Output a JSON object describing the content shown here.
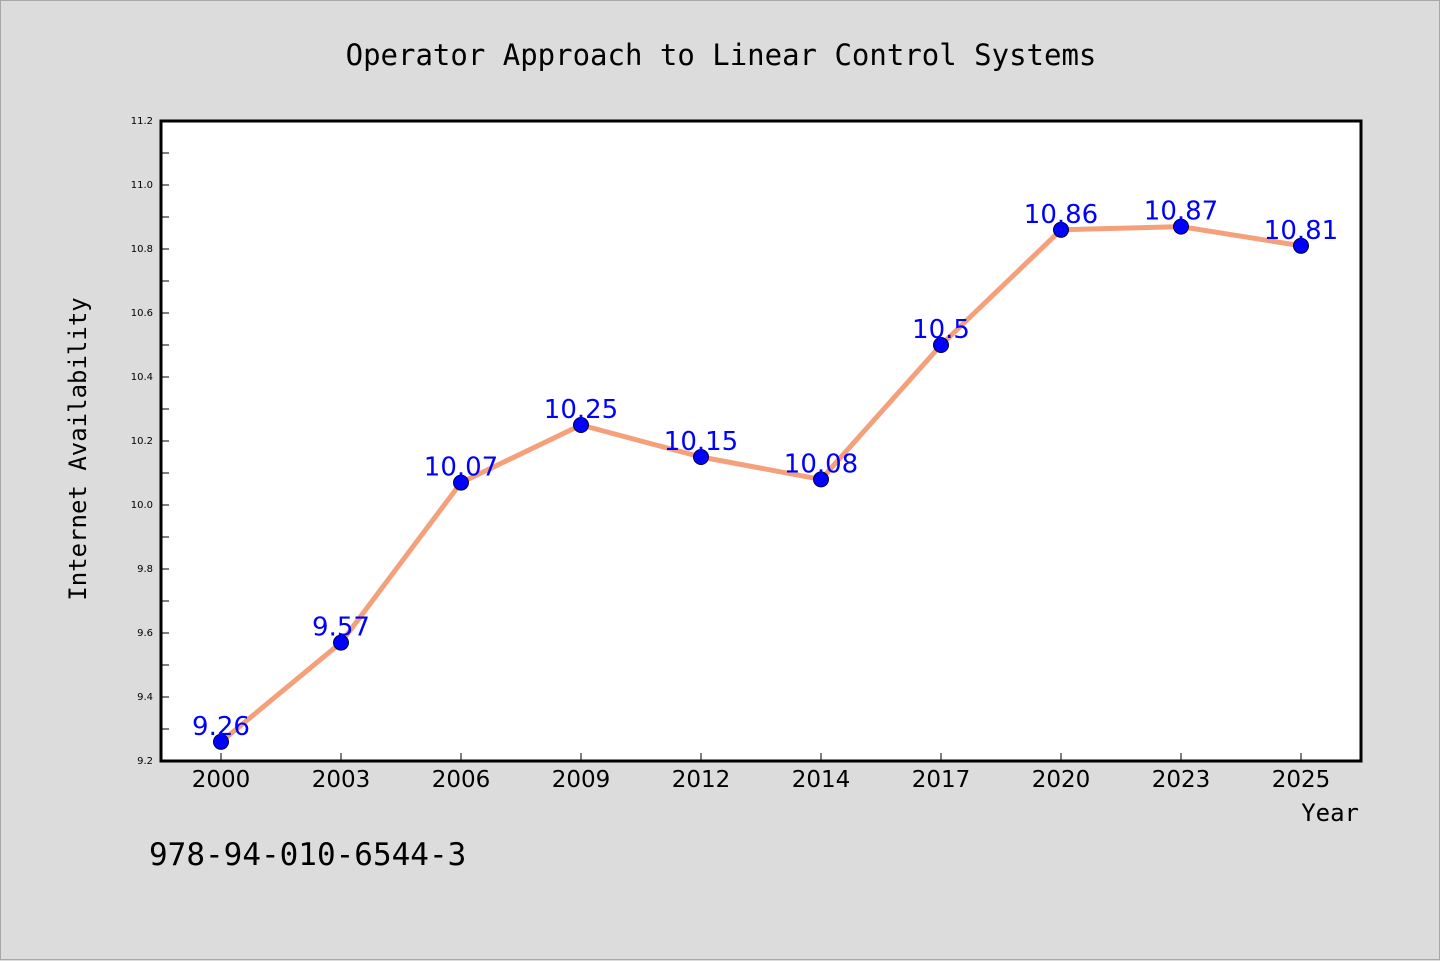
{
  "chart_data": {
    "type": "line",
    "title": "Operator Approach to Linear Control Systems",
    "xlabel": "Year",
    "ylabel": "Internet Availability",
    "categories": [
      "2000",
      "2003",
      "2006",
      "2009",
      "2012",
      "2014",
      "2017",
      "2020",
      "2023",
      "2025"
    ],
    "series": [
      {
        "values": [
          9.26,
          9.57,
          10.07,
          10.25,
          10.15,
          10.08,
          10.5,
          10.86,
          10.87,
          10.81
        ],
        "labels": [
          "9.26",
          "9.57",
          "10.07",
          "10.25",
          "10.15",
          "10.08",
          "10.5",
          "10.86",
          "10.87",
          "10.81"
        ],
        "line_color": "#f4a07a",
        "marker_color": "#0000ff",
        "label_color": "#0000ff"
      }
    ],
    "ylim": [
      9.2,
      11.2
    ],
    "yticks": [
      9.2,
      9.4,
      9.6,
      9.8,
      10.0,
      10.2,
      10.4,
      10.6,
      10.8,
      11.0,
      11.2
    ],
    "ytick_labels": [
      "9.2",
      "9.4",
      "9.6",
      "9.8",
      "10.0",
      "10.2",
      "10.4",
      "10.6",
      "10.8",
      "11.0",
      "11.2"
    ],
    "grid": false,
    "legend": "none"
  },
  "footer": {
    "isbn": "978-94-010-6544-3"
  }
}
